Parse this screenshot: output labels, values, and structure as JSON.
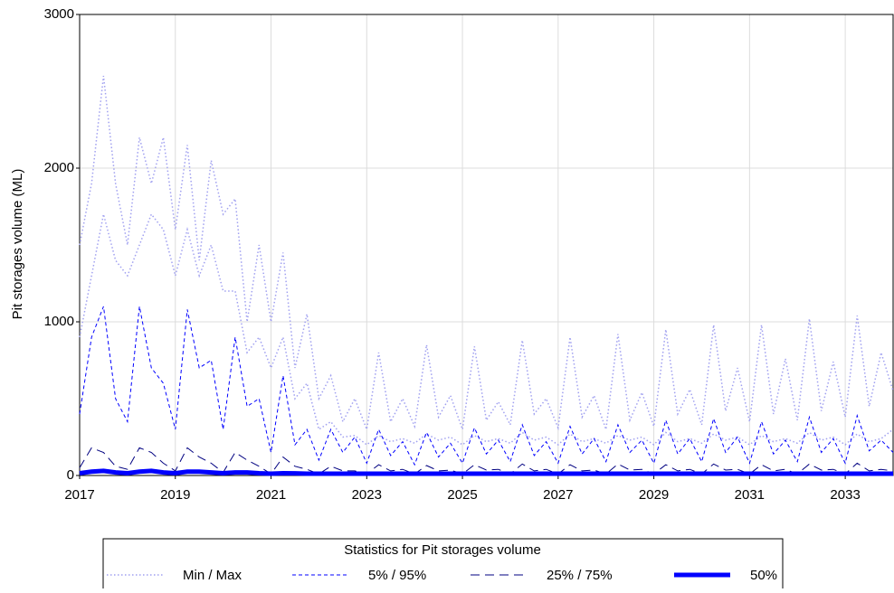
{
  "chart_data": {
    "type": "line",
    "y_label": "Pit storages volume (ML)",
    "legend_title": "Statistics for Pit storages volume",
    "grid": true,
    "xlim": [
      2017,
      2034
    ],
    "xticks": [
      2017,
      2019,
      2021,
      2023,
      2025,
      2027,
      2029,
      2031,
      2033
    ],
    "ylim": [
      0,
      3000
    ],
    "yticks": [
      0,
      1000,
      2000,
      3000
    ],
    "x": [
      2017,
      2017.25,
      2017.5,
      2017.75,
      2018,
      2018.25,
      2018.5,
      2018.75,
      2019,
      2019.25,
      2019.5,
      2019.75,
      2020,
      2020.25,
      2020.5,
      2020.75,
      2021,
      2021.25,
      2021.5,
      2021.75,
      2022,
      2022.25,
      2022.5,
      2022.75,
      2023,
      2023.25,
      2023.5,
      2023.75,
      2024,
      2024.25,
      2024.5,
      2024.75,
      2025,
      2025.25,
      2025.5,
      2025.75,
      2026,
      2026.25,
      2026.5,
      2026.75,
      2027,
      2027.25,
      2027.5,
      2027.75,
      2028,
      2028.25,
      2028.5,
      2028.75,
      2029,
      2029.25,
      2029.5,
      2029.75,
      2030,
      2030.25,
      2030.5,
      2030.75,
      2031,
      2031.25,
      2031.5,
      2031.75,
      2032,
      2032.25,
      2032.5,
      2032.75,
      2033,
      2033.25,
      2033.5,
      2033.75,
      2034
    ],
    "series": [
      {
        "name": "Min / Max",
        "color": "#a0a0f0",
        "style": "dotted",
        "width": 1.5,
        "values": [
          1500,
          1900,
          2600,
          1900,
          1500,
          2200,
          1900,
          2200,
          1600,
          2150,
          1400,
          2050,
          1700,
          1800,
          1000,
          1500,
          1000,
          1450,
          700,
          1050,
          500,
          650,
          350,
          500,
          300,
          800,
          350,
          500,
          320,
          850,
          380,
          520,
          300,
          840,
          360,
          480,
          330,
          880,
          400,
          500,
          310,
          900,
          380,
          520,
          300,
          920,
          360,
          540,
          320,
          950,
          400,
          560,
          330,
          980,
          420,
          700,
          350,
          980,
          400,
          760,
          360,
          1020,
          420,
          740,
          380,
          1040,
          450,
          800,
          550
        ],
        "lower": [
          900,
          1300,
          1700,
          1400,
          1300,
          1500,
          1700,
          1600,
          1300,
          1600,
          1300,
          1500,
          1200,
          1200,
          800,
          900,
          700,
          900,
          500,
          600,
          300,
          350,
          250,
          260,
          200,
          260,
          220,
          240,
          210,
          270,
          230,
          250,
          200,
          260,
          220,
          240,
          210,
          280,
          230,
          250,
          200,
          270,
          220,
          240,
          210,
          260,
          230,
          250,
          200,
          280,
          220,
          240,
          210,
          270,
          230,
          250,
          200,
          260,
          220,
          240,
          210,
          280,
          230,
          250,
          200,
          270,
          220,
          240,
          300
        ]
      },
      {
        "name": "5% / 95%",
        "color": "#0000ff",
        "style": "short-dash",
        "width": 1,
        "values": [
          400,
          900,
          1100,
          500,
          350,
          1100,
          700,
          600,
          300,
          1080,
          700,
          750,
          300,
          900,
          450,
          500,
          150,
          650,
          200,
          300,
          100,
          300,
          150,
          250,
          80,
          300,
          130,
          220,
          70,
          280,
          120,
          210,
          80,
          310,
          140,
          230,
          90,
          330,
          130,
          220,
          80,
          320,
          140,
          240,
          90,
          330,
          150,
          230,
          80,
          360,
          140,
          240,
          90,
          370,
          150,
          250,
          80,
          350,
          140,
          230,
          90,
          380,
          150,
          240,
          80,
          390,
          160,
          230,
          150
        ]
      },
      {
        "name": "25% / 75%",
        "color": "#000080",
        "style": "long-dash",
        "width": 1,
        "values": [
          50,
          180,
          150,
          60,
          40,
          180,
          150,
          80,
          30,
          180,
          120,
          80,
          20,
          150,
          100,
          60,
          10,
          120,
          60,
          40,
          10,
          60,
          30,
          30,
          10,
          70,
          30,
          40,
          10,
          65,
          30,
          35,
          10,
          70,
          35,
          40,
          10,
          75,
          30,
          40,
          10,
          70,
          30,
          35,
          10,
          75,
          35,
          40,
          10,
          70,
          30,
          40,
          10,
          75,
          35,
          40,
          10,
          70,
          30,
          40,
          10,
          75,
          35,
          40,
          10,
          80,
          30,
          40,
          30
        ]
      },
      {
        "name": "50%",
        "color": "#0000ff",
        "style": "solid",
        "width": 5,
        "values": [
          15,
          25,
          30,
          20,
          15,
          25,
          30,
          20,
          15,
          25,
          25,
          20,
          15,
          20,
          20,
          15,
          12,
          15,
          14,
          12,
          12,
          12,
          12,
          12,
          12,
          12,
          12,
          12,
          12,
          12,
          12,
          12,
          12,
          12,
          12,
          12,
          12,
          12,
          12,
          12,
          12,
          12,
          12,
          12,
          12,
          12,
          12,
          12,
          12,
          12,
          12,
          12,
          12,
          12,
          12,
          12,
          12,
          12,
          12,
          12,
          12,
          12,
          12,
          12,
          12,
          12,
          12,
          12,
          12
        ]
      }
    ]
  }
}
